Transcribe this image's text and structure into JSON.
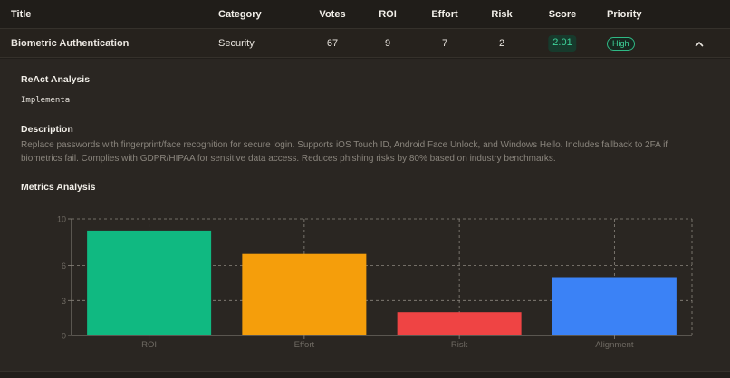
{
  "table": {
    "headers": {
      "title": "Title",
      "category": "Category",
      "votes": "Votes",
      "roi": "ROI",
      "effort": "Effort",
      "risk": "Risk",
      "score": "Score",
      "priority": "Priority"
    },
    "row": {
      "title": "Biometric Authentication",
      "category": "Security",
      "votes": "67",
      "roi": "9",
      "effort": "7",
      "risk": "2",
      "score": "2.01",
      "priority": "High",
      "expand_icon": "chevron-up-icon"
    }
  },
  "details": {
    "react_title": "ReAct Analysis",
    "react_text": "Implementa",
    "description_title": "Description",
    "description_text": "Replace passwords with fingerprint/face recognition for secure login. Supports iOS Touch ID, Android Face Unlock, and Windows Hello. Includes fallback to 2FA if biometrics fail. Complies with GDPR/HIPAA for sensitive data access. Reduces phishing risks by 80% based on industry benchmarks.",
    "metrics_title": "Metrics Analysis"
  },
  "colors": {
    "roi": "#10b981",
    "effort": "#f59e0b",
    "risk": "#ef4444",
    "alignment": "#3b82f6",
    "score_badge": "#3ed39a"
  },
  "chart_data": {
    "type": "bar",
    "categories": [
      "ROI",
      "Effort",
      "Risk",
      "Alignment"
    ],
    "values": [
      9,
      7,
      2,
      5
    ],
    "colors": [
      "#10b981",
      "#f59e0b",
      "#ef4444",
      "#3b82f6"
    ],
    "yticks": [
      "0",
      "3",
      "6",
      "10"
    ],
    "ylim": [
      0,
      10
    ],
    "grid": true,
    "grid_style": "dashed"
  }
}
